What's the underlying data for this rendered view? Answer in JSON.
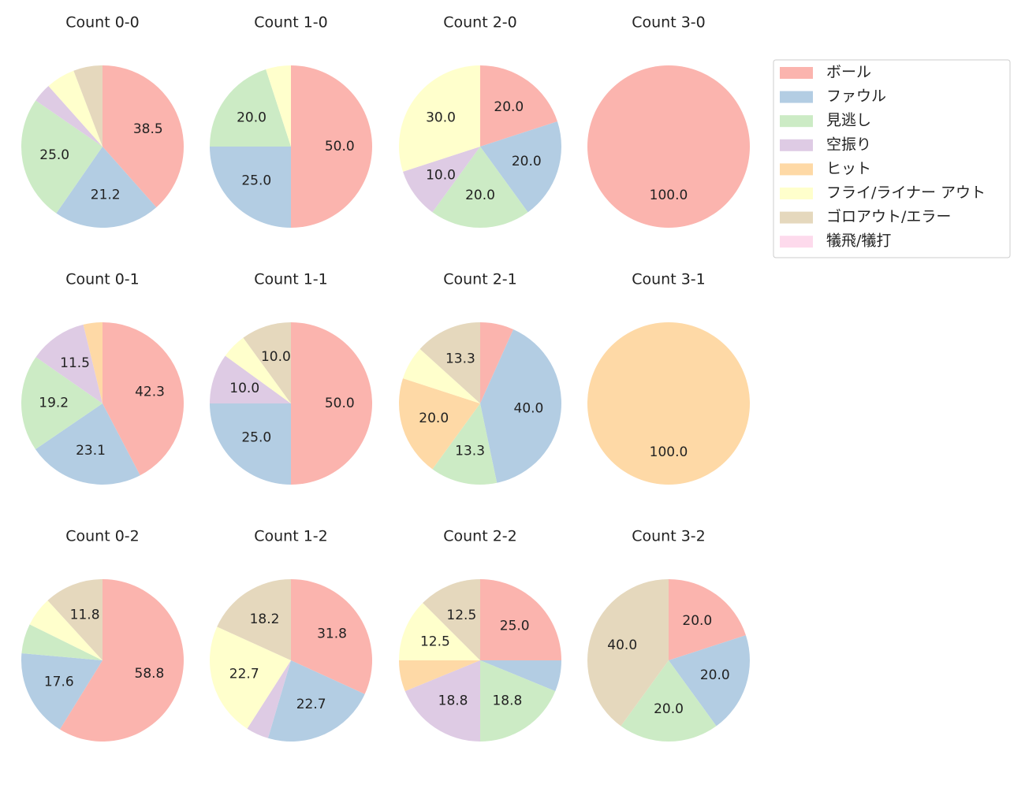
{
  "legend": {
    "names": [
      "ボール",
      "ファウル",
      "見逃し",
      "空振り",
      "ヒット",
      "フライ/ライナー アウト",
      "ゴロアウト/エラー",
      "犠飛/犠打"
    ],
    "colors": [
      "#fbb4ae",
      "#b3cde3",
      "#ccebc5",
      "#decbe4",
      "#fed9a6",
      "#ffffcc",
      "#e5d8bd",
      "#fddaec"
    ]
  },
  "chart_data": [
    {
      "type": "pie",
      "title": "Count 0-0",
      "values": [
        38.5,
        21.2,
        25.0,
        3.8,
        0,
        5.8,
        5.8,
        0
      ],
      "value_labels": [
        "38.5",
        "21.2",
        "25.0",
        null,
        null,
        null,
        null,
        null
      ]
    },
    {
      "type": "pie",
      "title": "Count 1-0",
      "values": [
        50,
        25,
        20,
        0,
        0,
        5,
        0,
        0
      ],
      "value_labels": [
        "50.0",
        "25.0",
        "20.0",
        null,
        null,
        null,
        null,
        null
      ]
    },
    {
      "type": "pie",
      "title": "Count 2-0",
      "values": [
        20,
        20,
        20,
        10,
        0,
        30,
        0,
        0
      ],
      "value_labels": [
        "20.0",
        "20.0",
        "20.0",
        "10.0",
        null,
        "30.0",
        null,
        null
      ]
    },
    {
      "type": "pie",
      "title": "Count 3-0",
      "values": [
        100,
        0,
        0,
        0,
        0,
        0,
        0,
        0
      ],
      "value_labels": [
        "100.0",
        null,
        null,
        null,
        null,
        null,
        null,
        null
      ]
    },
    {
      "type": "pie",
      "title": "Count 0-1",
      "values": [
        42.3,
        23.1,
        19.2,
        11.5,
        3.8,
        0,
        0,
        0
      ],
      "value_labels": [
        "42.3",
        "23.1",
        "19.2",
        "11.5",
        null,
        null,
        null,
        null
      ]
    },
    {
      "type": "pie",
      "title": "Count 1-1",
      "values": [
        50,
        25,
        0,
        10,
        0,
        5,
        10,
        0
      ],
      "value_labels": [
        "50.0",
        "25.0",
        null,
        "10.0",
        null,
        null,
        "10.0",
        null
      ]
    },
    {
      "type": "pie",
      "title": "Count 2-1",
      "values": [
        6.7,
        40,
        13.3,
        0,
        20,
        6.7,
        13.3,
        0
      ],
      "value_labels": [
        null,
        "40.0",
        "13.3",
        null,
        "20.0",
        null,
        "13.3",
        null
      ]
    },
    {
      "type": "pie",
      "title": "Count 3-1",
      "values": [
        0,
        0,
        0,
        0,
        100,
        0,
        0,
        0
      ],
      "value_labels": [
        null,
        null,
        null,
        null,
        "100.0",
        null,
        null,
        null
      ]
    },
    {
      "type": "pie",
      "title": "Count 0-2",
      "values": [
        58.8,
        17.6,
        5.9,
        0,
        0,
        5.9,
        11.8,
        0
      ],
      "value_labels": [
        "58.8",
        "17.6",
        null,
        null,
        null,
        null,
        "11.8",
        null
      ]
    },
    {
      "type": "pie",
      "title": "Count 1-2",
      "values": [
        31.8,
        22.7,
        0,
        4.5,
        0,
        22.7,
        18.2,
        0
      ],
      "value_labels": [
        "31.8",
        "22.7",
        null,
        null,
        null,
        "22.7",
        "18.2",
        null
      ]
    },
    {
      "type": "pie",
      "title": "Count 2-2",
      "values": [
        25,
        6.2,
        18.8,
        18.8,
        6.2,
        12.5,
        12.5,
        0
      ],
      "value_labels": [
        "25.0",
        null,
        "18.8",
        "18.8",
        null,
        "12.5",
        "12.5",
        null
      ]
    },
    {
      "type": "pie",
      "title": "Count 3-2",
      "values": [
        20,
        20,
        20,
        0,
        0,
        0,
        40,
        0
      ],
      "value_labels": [
        "20.0",
        "20.0",
        "20.0",
        null,
        null,
        null,
        "40.0",
        null
      ]
    }
  ]
}
